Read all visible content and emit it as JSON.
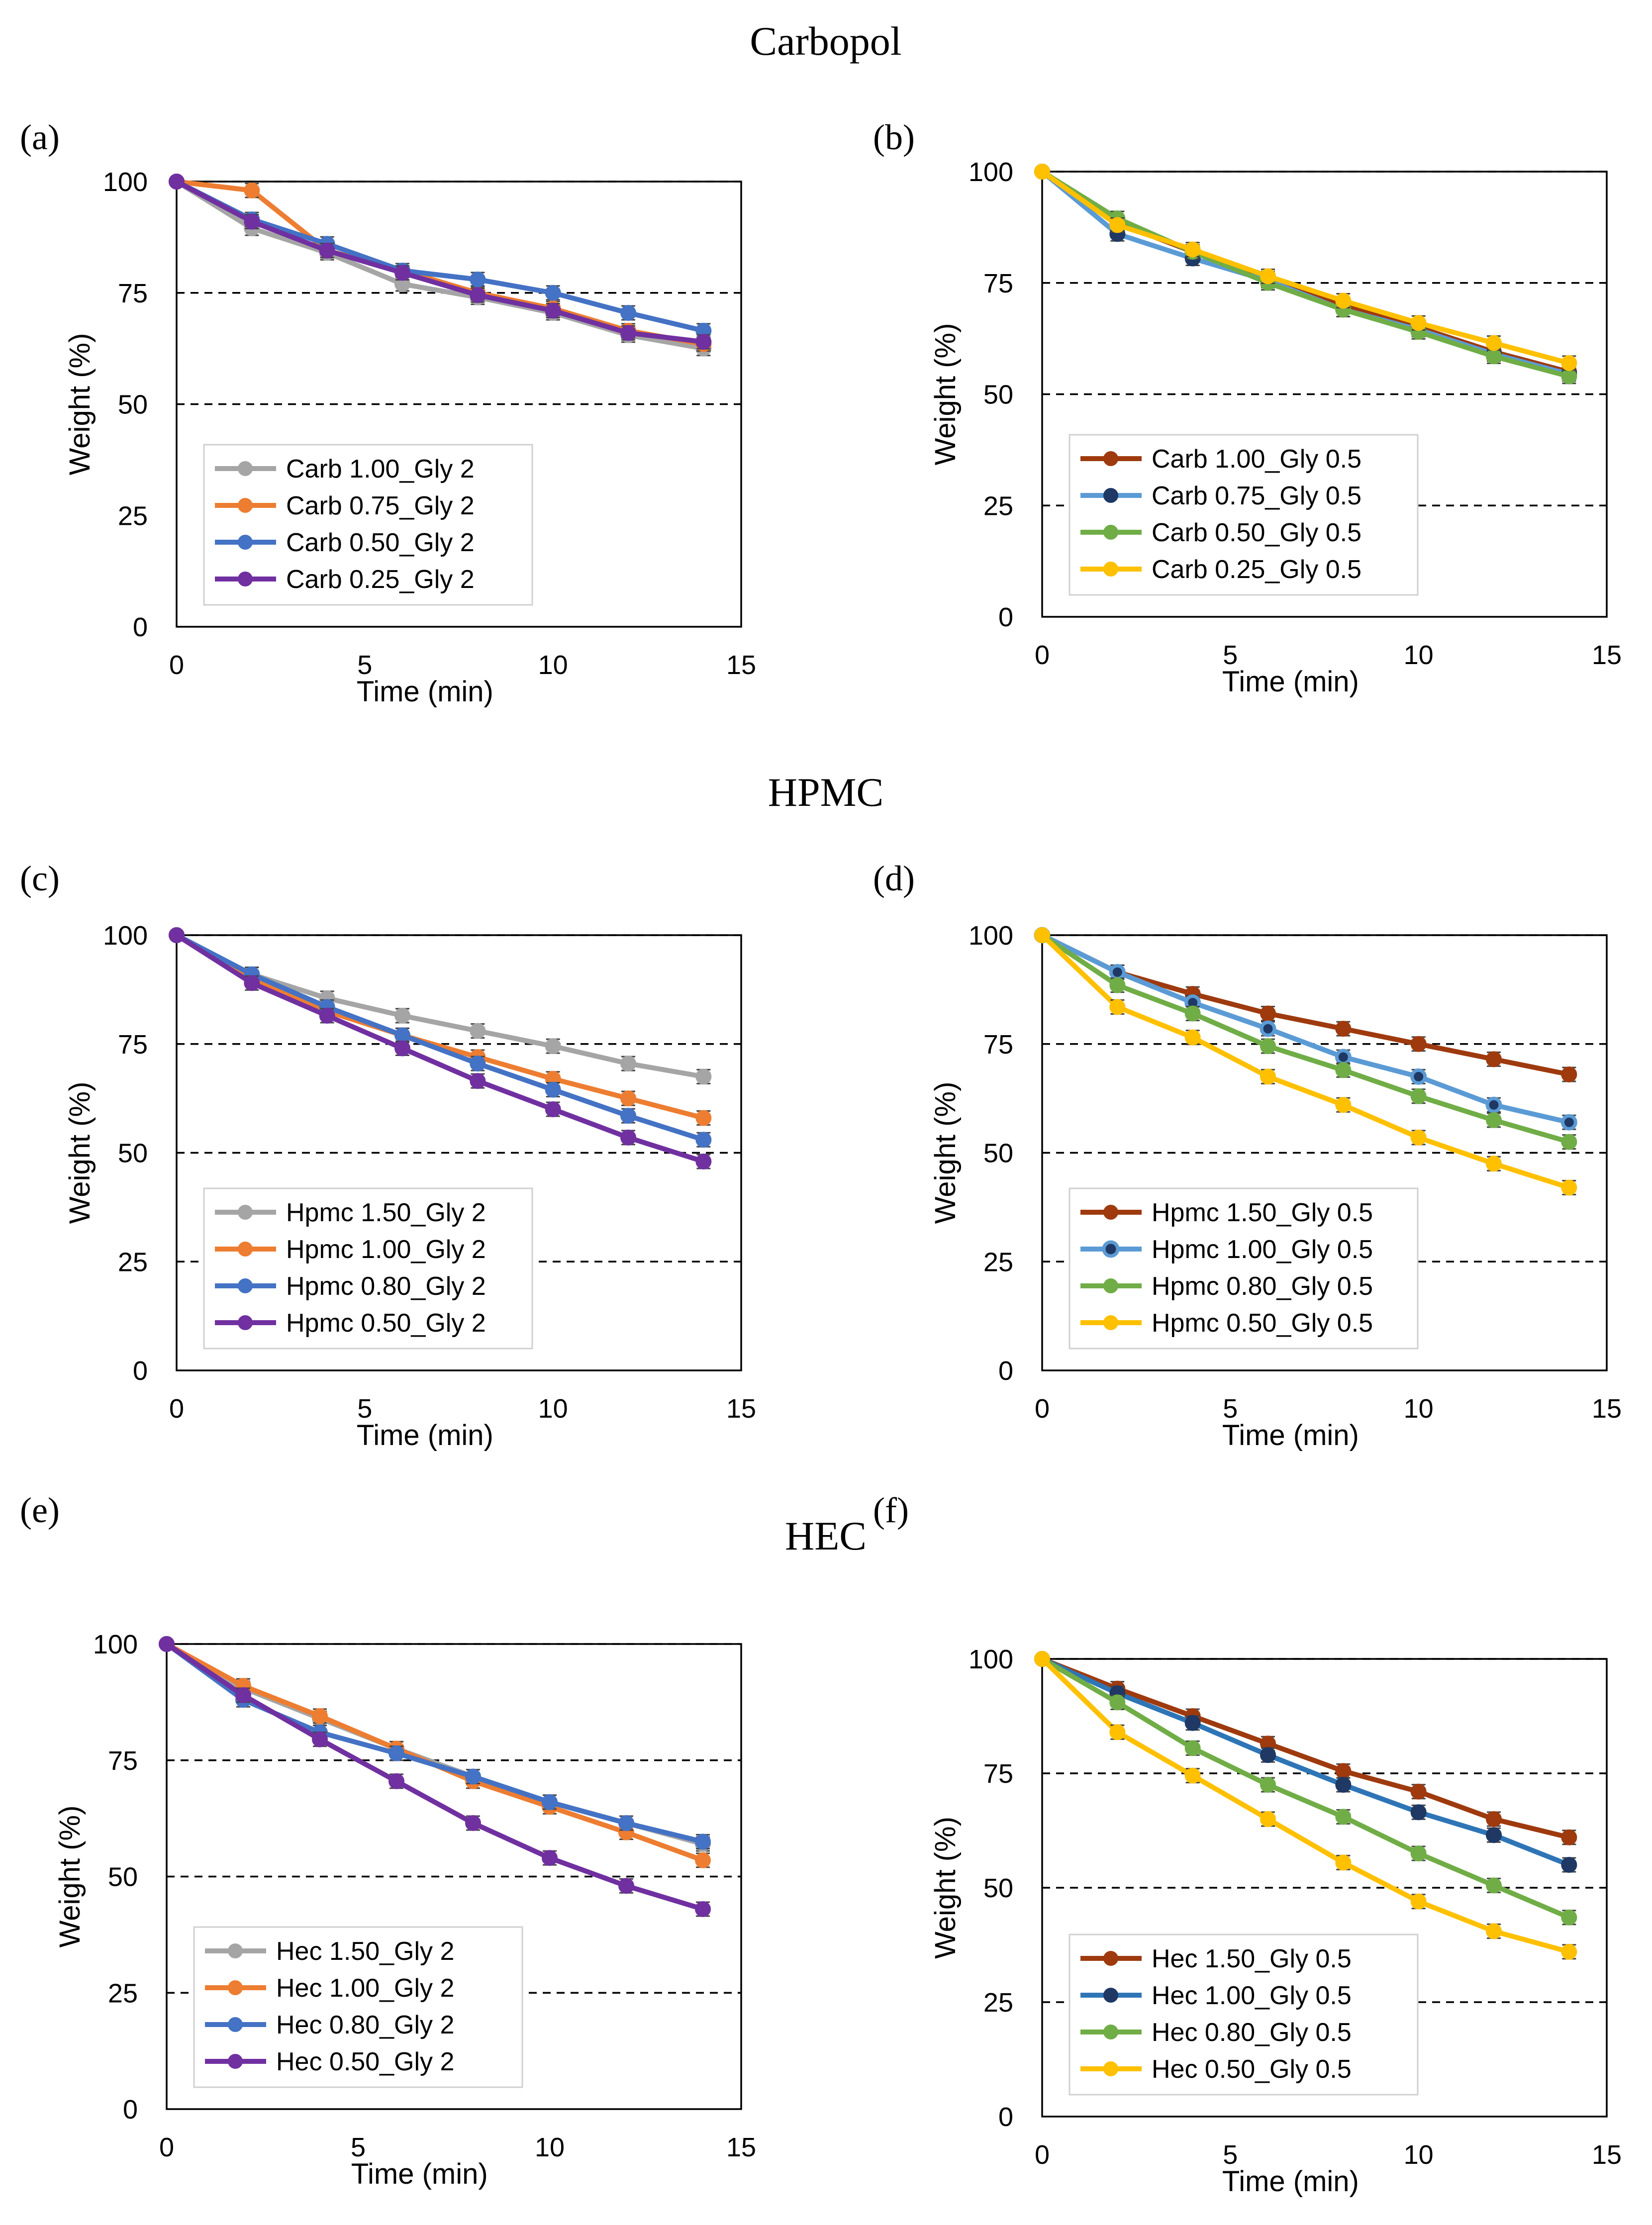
{
  "figure": {
    "group_titles": [
      "Carbopol",
      "HPMC",
      "HEC"
    ]
  },
  "chart_data": [
    {
      "id": "a",
      "panel_label": "(a)",
      "type": "line",
      "title": "",
      "xlabel": "Time (min)",
      "ylabel": "Weight (%)",
      "xlim": [
        0,
        15
      ],
      "ylim": [
        0,
        100
      ],
      "xticks": [
        0,
        5,
        10,
        15
      ],
      "yticks": [
        0,
        25,
        50,
        75,
        100
      ],
      "reference_lines": [
        50,
        75,
        100
      ],
      "grid": false,
      "legend_position": "bottom-left",
      "x": [
        0,
        2,
        4,
        6,
        8,
        10,
        12,
        14
      ],
      "series": [
        {
          "name": "Carb 1.00_Gly 2",
          "color": "#a5a5a5",
          "marker": "filled",
          "values": [
            100,
            89.5,
            84,
            77,
            74,
            70.5,
            65.5,
            62.5
          ]
        },
        {
          "name": "Carb 0.75_Gly 2",
          "color": "#ed7d31",
          "marker": "filled",
          "values": [
            100,
            98,
            84.5,
            80,
            75,
            71.5,
            66.5,
            63.5
          ]
        },
        {
          "name": "Carb 0.50_Gly 2",
          "color": "#4472c4",
          "marker": "filled",
          "values": [
            100,
            91.5,
            86,
            80,
            78,
            75,
            70.5,
            66.5
          ]
        },
        {
          "name": "Carb 0.25_Gly 2",
          "color": "#7030a0",
          "marker": "filled",
          "values": [
            100,
            91,
            84.5,
            79.5,
            74.5,
            71,
            66,
            64
          ]
        }
      ]
    },
    {
      "id": "b",
      "panel_label": "(b)",
      "type": "line",
      "title": "",
      "xlabel": "Time (min)",
      "ylabel": "Weight (%)",
      "xlim": [
        0,
        15
      ],
      "ylim": [
        0,
        100
      ],
      "xticks": [
        0,
        5,
        10,
        15
      ],
      "yticks": [
        0,
        25,
        50,
        75,
        100
      ],
      "reference_lines": [
        25,
        50,
        75,
        100
      ],
      "grid": false,
      "legend_position": "bottom-left",
      "x": [
        0,
        2,
        4,
        6,
        8,
        10,
        12,
        14
      ],
      "series": [
        {
          "name": "Carb 1.00_Gly 0.5",
          "color": "#9e3a0e",
          "marker": "filled",
          "values": [
            100,
            88.5,
            82,
            76,
            70,
            65,
            59.5,
            55
          ]
        },
        {
          "name": "Carb 0.75_Gly 0.5",
          "color": "#5b9bd5",
          "marker": "dark",
          "values": [
            100,
            86,
            80.5,
            75.5,
            69,
            64.5,
            59,
            54.5
          ]
        },
        {
          "name": "Carb 0.50_Gly 0.5",
          "color": "#70ad47",
          "marker": "filled",
          "values": [
            100,
            89.5,
            82,
            75,
            69,
            64,
            58.5,
            54
          ]
        },
        {
          "name": "Carb 0.25_Gly 0.5",
          "color": "#ffc000",
          "marker": "filled",
          "values": [
            100,
            88,
            82.5,
            76.5,
            71,
            66,
            61.5,
            57
          ]
        }
      ]
    },
    {
      "id": "c",
      "panel_label": "(c)",
      "type": "line",
      "title": "",
      "xlabel": "Time (min)",
      "ylabel": "Weight (%)",
      "xlim": [
        0,
        15
      ],
      "ylim": [
        0,
        100
      ],
      "xticks": [
        0,
        5,
        10,
        15
      ],
      "yticks": [
        0,
        25,
        50,
        75,
        100
      ],
      "reference_lines": [
        25,
        50,
        75,
        100
      ],
      "grid": false,
      "legend_position": "bottom-left",
      "x": [
        0,
        2,
        4,
        6,
        8,
        10,
        12,
        14
      ],
      "series": [
        {
          "name": "Hpmc 1.50_Gly 2",
          "color": "#a5a5a5",
          "marker": "filled",
          "values": [
            100,
            91,
            85.5,
            81.5,
            78,
            74.5,
            70.5,
            67.5
          ]
        },
        {
          "name": "Hpmc 1.00_Gly 2",
          "color": "#ed7d31",
          "marker": "filled",
          "values": [
            100,
            90,
            82.5,
            77,
            72,
            67,
            62.5,
            58
          ]
        },
        {
          "name": "Hpmc 0.80_Gly 2",
          "color": "#4472c4",
          "marker": "filled",
          "values": [
            100,
            91,
            83.5,
            77,
            70.5,
            64.5,
            58.5,
            53
          ]
        },
        {
          "name": "Hpmc 0.50_Gly 2",
          "color": "#7030a0",
          "marker": "filled",
          "values": [
            100,
            89,
            81.5,
            74,
            66.5,
            60,
            53.5,
            48
          ]
        }
      ]
    },
    {
      "id": "d",
      "panel_label": "(d)",
      "type": "line",
      "title": "",
      "xlabel": "Time (min)",
      "ylabel": "Weight (%)",
      "xlim": [
        0,
        15
      ],
      "ylim": [
        0,
        100
      ],
      "xticks": [
        0,
        5,
        10,
        15
      ],
      "yticks": [
        0,
        25,
        50,
        75,
        100
      ],
      "reference_lines": [
        25,
        50,
        75,
        100
      ],
      "grid": false,
      "legend_position": "bottom-left",
      "x": [
        0,
        2,
        4,
        6,
        8,
        10,
        12,
        14
      ],
      "series": [
        {
          "name": "Hpmc 1.50_Gly 0.5",
          "color": "#9e3a0e",
          "marker": "filled",
          "values": [
            100,
            91.5,
            86.5,
            82,
            78.5,
            75,
            71.5,
            68
          ]
        },
        {
          "name": "Hpmc 1.00_Gly 0.5",
          "color": "#5b9bd5",
          "marker": "ring",
          "values": [
            100,
            91.5,
            84.5,
            78.5,
            72,
            67.5,
            61,
            57
          ]
        },
        {
          "name": "Hpmc 0.80_Gly 0.5",
          "color": "#70ad47",
          "marker": "filled",
          "values": [
            100,
            88.5,
            82,
            74.5,
            69,
            63,
            57.5,
            52.5
          ]
        },
        {
          "name": "Hpmc 0.50_Gly 0.5",
          "color": "#ffc000",
          "marker": "filled",
          "values": [
            100,
            83.5,
            76.5,
            67.5,
            61,
            53.5,
            47.5,
            42
          ]
        }
      ]
    },
    {
      "id": "e",
      "panel_label": "(e)",
      "type": "line",
      "title": "",
      "xlabel": "Time (min)",
      "ylabel": "Weight (%)",
      "xlim": [
        0,
        15
      ],
      "ylim": [
        0,
        100
      ],
      "xticks": [
        0,
        5,
        10,
        15
      ],
      "yticks": [
        0,
        25,
        50,
        75,
        100
      ],
      "reference_lines": [
        25,
        50,
        75,
        100
      ],
      "grid": false,
      "legend_position": "bottom-left",
      "x": [
        0,
        2,
        4,
        6,
        8,
        10,
        12,
        14
      ],
      "series": [
        {
          "name": "Hec 1.50_Gly 2",
          "color": "#a5a5a5",
          "marker": "filled",
          "values": [
            100,
            90.5,
            84,
            77.5,
            71.5,
            66,
            61.5,
            57
          ]
        },
        {
          "name": "Hec 1.00_Gly 2",
          "color": "#ed7d31",
          "marker": "filled",
          "values": [
            100,
            91,
            84.5,
            77.5,
            70.5,
            65,
            59.5,
            53.5
          ]
        },
        {
          "name": "Hec 0.80_Gly 2",
          "color": "#4472c4",
          "marker": "filled",
          "values": [
            100,
            88,
            81,
            76.5,
            71.5,
            66,
            61.5,
            57.5
          ]
        },
        {
          "name": "Hec 0.50_Gly 2",
          "color": "#7030a0",
          "marker": "filled",
          "values": [
            100,
            89,
            79.5,
            70.5,
            61.5,
            54,
            48,
            43
          ]
        }
      ]
    },
    {
      "id": "f",
      "panel_label": "(f)",
      "type": "line",
      "title": "",
      "xlabel": "Time (min)",
      "ylabel": "Weight (%)",
      "xlim": [
        0,
        15
      ],
      "ylim": [
        0,
        100
      ],
      "xticks": [
        0,
        5,
        10,
        15
      ],
      "yticks": [
        0,
        25,
        50,
        75,
        100
      ],
      "reference_lines": [
        25,
        50,
        75,
        100
      ],
      "grid": false,
      "legend_position": "bottom-left",
      "x": [
        0,
        2,
        4,
        6,
        8,
        10,
        12,
        14
      ],
      "series": [
        {
          "name": "Hec 1.50_Gly 0.5",
          "color": "#9e3a0e",
          "marker": "filled",
          "values": [
            100,
            93.5,
            87.5,
            81.5,
            75.5,
            71,
            65,
            61
          ]
        },
        {
          "name": "Hec 1.00_Gly 0.5",
          "color": "#2e75b6",
          "marker": "dark",
          "values": [
            100,
            92.5,
            86,
            79,
            72.5,
            66.5,
            61.5,
            55
          ]
        },
        {
          "name": "Hec 0.80_Gly 0.5",
          "color": "#70ad47",
          "marker": "filled",
          "values": [
            100,
            90.5,
            80.5,
            72.5,
            65.5,
            57.5,
            50.5,
            43.5
          ]
        },
        {
          "name": "Hec 0.50_Gly 0.5",
          "color": "#ffc000",
          "marker": "filled",
          "values": [
            100,
            84,
            74.5,
            65,
            55.5,
            47,
            40.5,
            36
          ]
        }
      ]
    }
  ]
}
